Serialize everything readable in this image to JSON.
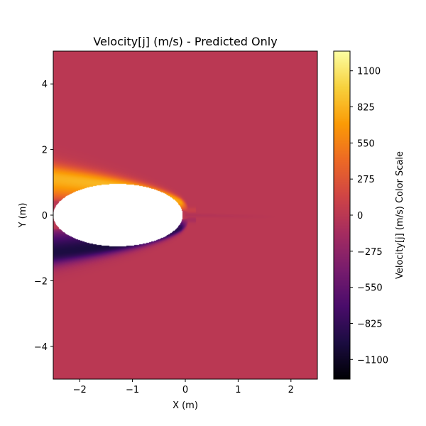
{
  "chart_data": {
    "type": "heatmap",
    "title": "Velocity[j] (m/s) - Predicted Only",
    "xlabel": "X (m)",
    "ylabel": "Y (m)",
    "xlim": [
      -2.5,
      2.5
    ],
    "ylim": [
      -5,
      5
    ],
    "x_ticks": [
      -2,
      -1,
      0,
      1,
      2
    ],
    "x_tick_labels": [
      "−2",
      "−1",
      "0",
      "1",
      "2"
    ],
    "y_ticks": [
      -4,
      -2,
      0,
      2,
      4
    ],
    "y_tick_labels": [
      "−4",
      "−2",
      "0",
      "2",
      "4"
    ],
    "colorbar": {
      "label": "Velocity[j] (m/s) Color Scale",
      "colormap": "inferno",
      "range": [
        -1250,
        1250
      ],
      "ticks": [
        1100,
        825,
        550,
        275,
        0,
        -275,
        -550,
        -825,
        -1100
      ],
      "tick_labels": [
        "1100",
        "825",
        "550",
        "275",
        "0",
        "−275",
        "−550",
        "−825",
        "−1100"
      ]
    },
    "field": {
      "background_value": 0,
      "body": {
        "shape": "ellipse",
        "x_range": [
          -2.5,
          -0.05
        ],
        "y_range": [
          -0.95,
          0.95
        ],
        "note": ""
      },
      "upper_layer_peak": 1150,
      "lower_layer_peak": -1200
    },
    "grid": false
  },
  "colors": {
    "inferno_stops": [
      "#000004",
      "#1b0c41",
      "#4a0c6b",
      "#781c6d",
      "#a52c60",
      "#cf4446",
      "#ed6925",
      "#fb9b06",
      "#f7d13d",
      "#fcffa4"
    ],
    "body_fill": "#ffffff"
  }
}
